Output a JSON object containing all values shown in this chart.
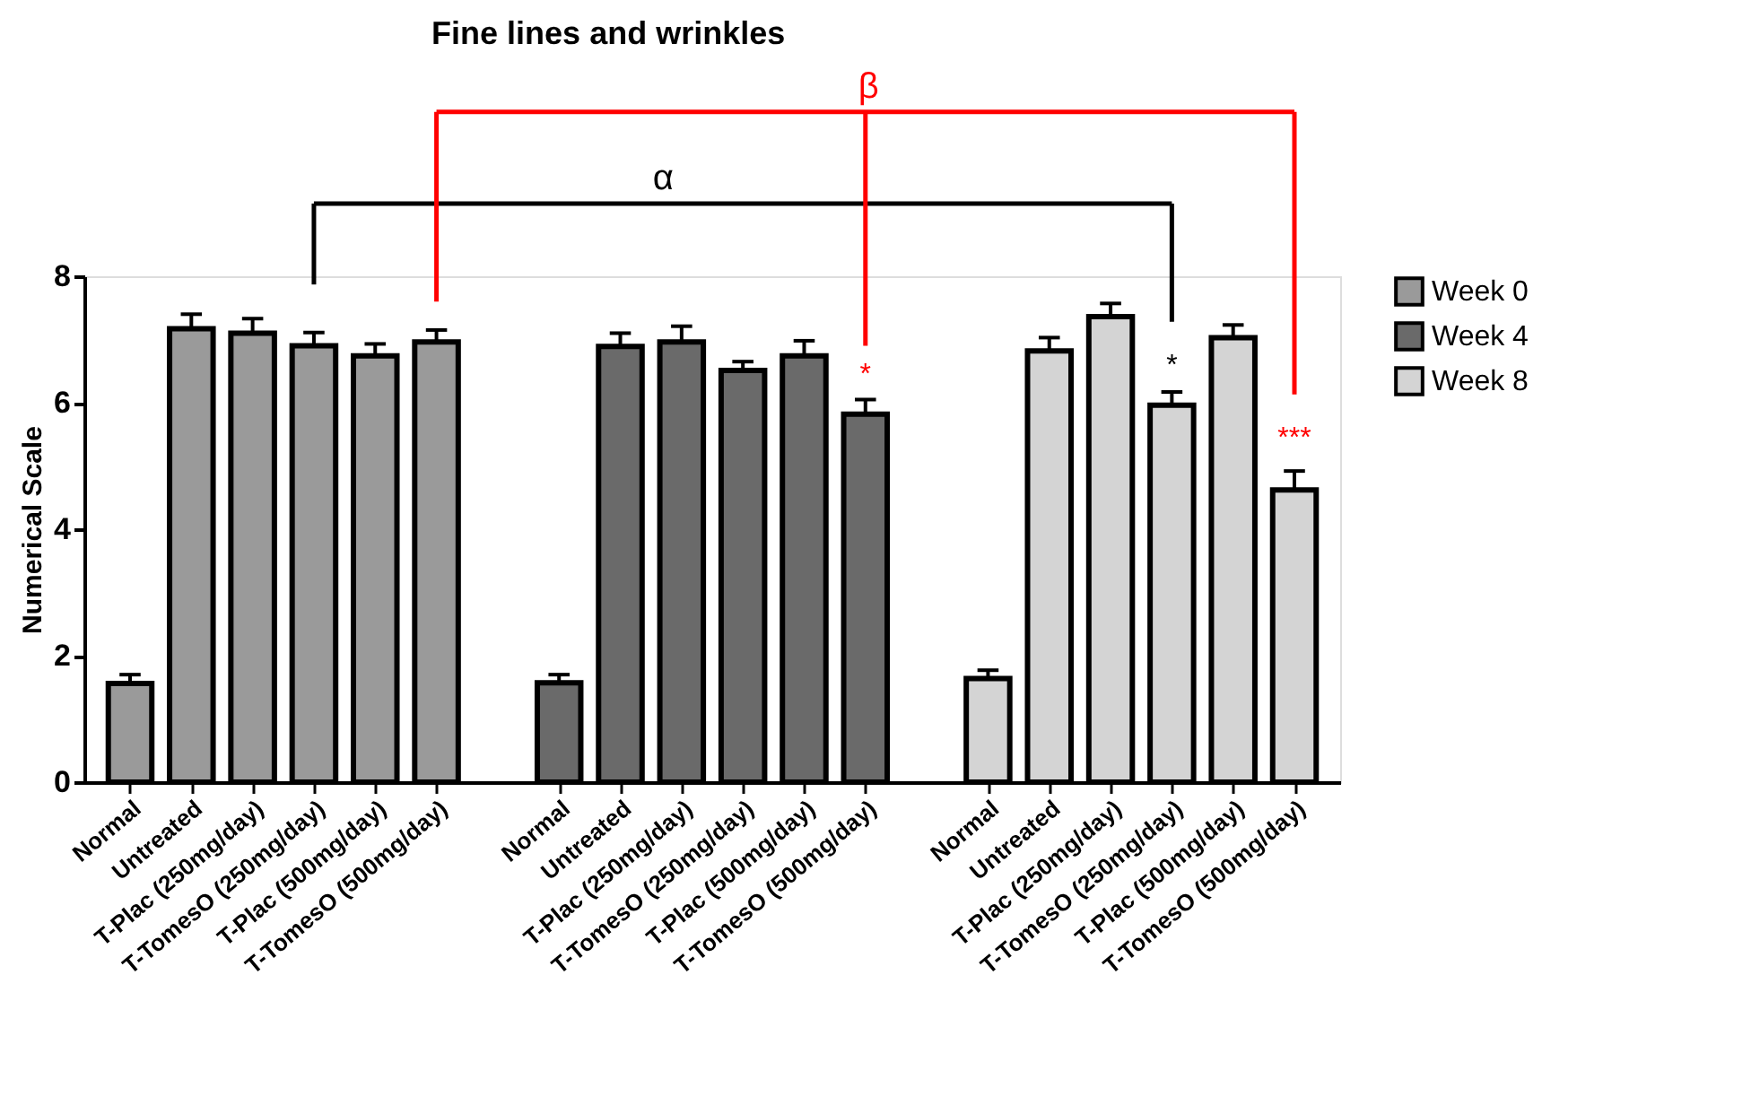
{
  "chart_data": {
    "type": "bar",
    "title": "Fine lines and wrinkles",
    "ylabel": "Numerical Scale",
    "categories": [
      "Normal",
      "Untreated",
      "T-Plac (250mg/day)",
      "T-TomesO (250mg/day)",
      "T-Plac (500mg/day)",
      "T-TomesO (500mg/day)",
      null,
      "Normal",
      "Untreated",
      "T-Plac (250mg/day)",
      "T-TomesO (250mg/day)",
      "T-Plac (500mg/day)",
      "T-TomesO (500mg/day)",
      null,
      "Normal",
      "Untreated",
      "T-Plac (250mg/day)",
      "T-TomesO (250mg/day)",
      "T-Plac (500mg/day)",
      "T-TomesO (500mg/day)"
    ],
    "series": [
      {
        "name": "Week 0",
        "color": "#9a9a9a",
        "values": [
          1.56,
          7.17,
          7.1,
          6.9,
          6.74,
          6.96,
          null,
          null,
          null,
          null,
          null,
          null,
          null,
          null,
          null,
          null,
          null,
          null,
          null,
          null
        ],
        "errors": [
          0.14,
          0.23,
          0.23,
          0.21,
          0.19,
          0.19,
          null,
          null,
          null,
          null,
          null,
          null,
          null,
          null,
          null,
          null,
          null,
          null,
          null,
          null
        ]
      },
      {
        "name": "Week 4",
        "color": "#6a6a6a",
        "values": [
          null,
          null,
          null,
          null,
          null,
          null,
          null,
          1.57,
          6.89,
          6.96,
          6.51,
          6.74,
          5.82,
          null,
          null,
          null,
          null,
          null,
          null,
          null
        ],
        "errors": [
          null,
          null,
          null,
          null,
          null,
          null,
          null,
          0.13,
          0.21,
          0.25,
          0.14,
          0.24,
          0.23,
          null,
          null,
          null,
          null,
          null,
          null,
          null
        ]
      },
      {
        "name": "Week 8",
        "color": "#d4d4d4",
        "values": [
          null,
          null,
          null,
          null,
          null,
          null,
          null,
          null,
          null,
          null,
          null,
          null,
          null,
          null,
          1.64,
          6.82,
          7.36,
          5.96,
          7.03,
          4.62
        ],
        "errors": [
          null,
          null,
          null,
          null,
          null,
          null,
          null,
          null,
          null,
          null,
          null,
          null,
          null,
          null,
          0.13,
          0.21,
          0.21,
          0.21,
          0.2,
          0.3
        ]
      }
    ],
    "ylim": [
      0,
      8
    ],
    "yticks": [
      0,
      2,
      4,
      6,
      8
    ],
    "grid": false,
    "legend": "top right",
    "annotations": [
      "α",
      "β",
      "*",
      "*",
      "***"
    ]
  }
}
